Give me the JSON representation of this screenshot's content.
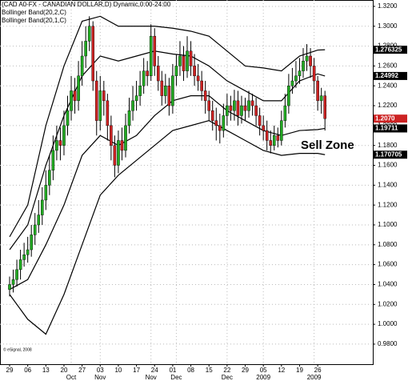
{
  "chart_data": {
    "type": "candlestick",
    "title": "(CAD A0-FX - CANADIAN DOLLAR,D) Dynamic,0:00-24:00",
    "annotation": "Sell Zone",
    "credit": "© eSignal, 2008",
    "up_color": "#22aa22",
    "down_color": "#cc2222",
    "grid": true,
    "xlim": [
      -2.65,
      100.2
    ],
    "ylim": [
      0.9598,
      1.3264
    ],
    "yticks": [
      {
        "value": 0.98,
        "label": "0.9800"
      },
      {
        "value": 1.0,
        "label": "1.0000"
      },
      {
        "value": 1.02,
        "label": "1.0200"
      },
      {
        "value": 1.04,
        "label": "1.0400"
      },
      {
        "value": 1.06,
        "label": "1.0600"
      },
      {
        "value": 1.08,
        "label": "1.0800"
      },
      {
        "value": 1.1,
        "label": "1.1000"
      },
      {
        "value": 1.12,
        "label": "1.1200"
      },
      {
        "value": 1.14,
        "label": "1.1400"
      },
      {
        "value": 1.16,
        "label": "1.1600"
      },
      {
        "value": 1.18,
        "label": "1.1800"
      },
      {
        "value": 1.2,
        "label": "1.2000"
      },
      {
        "value": 1.22,
        "label": "1.2200"
      },
      {
        "value": 1.24,
        "label": "1.2400"
      },
      {
        "value": 1.26,
        "label": "1.2600"
      },
      {
        "value": 1.28,
        "label": "1.2800"
      },
      {
        "value": 1.3,
        "label": "1.3000"
      },
      {
        "value": 1.32,
        "label": "1.3200"
      }
    ],
    "categories": [
      "29",
      null,
      null,
      null,
      null,
      "06",
      null,
      null,
      null,
      null,
      "13",
      null,
      null,
      null,
      null,
      "20",
      null,
      null,
      null,
      null,
      "27",
      null,
      null,
      null,
      null,
      "03",
      null,
      null,
      null,
      null,
      "10",
      null,
      null,
      null,
      null,
      "17",
      null,
      null,
      null,
      null,
      "24",
      null,
      null,
      null,
      null,
      "01",
      null,
      null,
      null,
      null,
      "08",
      null,
      null,
      null,
      null,
      "15",
      null,
      null,
      null,
      null,
      "22",
      null,
      null,
      null,
      null,
      "29",
      null,
      null,
      null,
      null,
      "05",
      null,
      null,
      null,
      null,
      "12",
      null,
      null,
      null,
      null,
      "19",
      null,
      null,
      null,
      null,
      "26",
      null,
      null
    ],
    "months": [
      null,
      null,
      null,
      null,
      null,
      null,
      null,
      null,
      null,
      null,
      null,
      null,
      null,
      null,
      null,
      null,
      null,
      "Oct",
      null,
      null,
      null,
      null,
      null,
      null,
      null,
      "Nov",
      null,
      null,
      null,
      null,
      null,
      null,
      null,
      null,
      null,
      null,
      null,
      null,
      null,
      "Nov",
      null,
      null,
      null,
      null,
      null,
      null,
      "Dec",
      null,
      null,
      null,
      null,
      null,
      null,
      null,
      null,
      null,
      null,
      null,
      null,
      null,
      "Dec",
      null,
      null,
      null,
      null,
      null,
      null,
      null,
      null,
      null,
      "2009",
      null,
      null,
      null,
      null,
      null,
      null,
      null,
      null,
      null,
      null,
      null,
      null,
      null,
      "2009",
      null,
      null,
      null
    ],
    "series": [
      {
        "name": "CAD A0-FX",
        "last_close_label": "1.2070",
        "open": [
          1.035,
          1.04,
          1.045,
          1.055,
          1.065,
          1.07,
          1.075,
          1.09,
          1.1,
          1.11,
          1.125,
          1.14,
          1.155,
          1.175,
          1.185,
          1.18,
          1.2,
          1.215,
          1.235,
          1.225,
          1.25,
          1.27,
          1.285,
          1.3,
          1.245,
          1.205,
          1.235,
          1.225,
          1.2,
          1.18,
          1.16,
          1.185,
          1.175,
          1.2,
          1.215,
          1.225,
          1.23,
          1.24,
          1.255,
          1.25,
          1.29,
          1.26,
          1.245,
          1.23,
          1.24,
          1.22,
          1.25,
          1.26,
          1.27,
          1.255,
          1.275,
          1.26,
          1.25,
          1.245,
          1.235,
          1.225,
          1.215,
          1.205,
          1.2,
          1.195,
          1.21,
          1.22,
          1.215,
          1.225,
          1.21,
          1.22,
          1.215,
          1.225,
          1.22,
          1.21,
          1.2,
          1.195,
          1.185,
          1.18,
          1.19,
          1.185,
          1.205,
          1.22,
          1.24,
          1.245,
          1.25,
          1.255,
          1.265,
          1.27,
          1.26,
          1.245,
          1.225,
          1.23
        ],
        "high": [
          1.048,
          1.055,
          1.065,
          1.075,
          1.082,
          1.088,
          1.1,
          1.112,
          1.125,
          1.138,
          1.155,
          1.17,
          1.19,
          1.2,
          1.198,
          1.215,
          1.23,
          1.25,
          1.248,
          1.265,
          1.285,
          1.3,
          1.31,
          1.305,
          1.255,
          1.25,
          1.245,
          1.232,
          1.21,
          1.19,
          1.195,
          1.198,
          1.212,
          1.228,
          1.24,
          1.245,
          1.255,
          1.268,
          1.265,
          1.302,
          1.298,
          1.27,
          1.255,
          1.252,
          1.248,
          1.262,
          1.272,
          1.285,
          1.28,
          1.29,
          1.285,
          1.272,
          1.262,
          1.255,
          1.245,
          1.235,
          1.225,
          1.218,
          1.212,
          1.222,
          1.232,
          1.23,
          1.236,
          1.235,
          1.23,
          1.228,
          1.235,
          1.232,
          1.228,
          1.218,
          1.21,
          1.205,
          1.195,
          1.2,
          1.198,
          1.215,
          1.232,
          1.252,
          1.258,
          1.265,
          1.268,
          1.278,
          1.282,
          1.278,
          1.268,
          1.25,
          1.238,
          1.235
        ],
        "low": [
          1.028,
          1.032,
          1.038,
          1.045,
          1.058,
          1.062,
          1.068,
          1.08,
          1.092,
          1.1,
          1.115,
          1.13,
          1.145,
          1.165,
          1.165,
          1.17,
          1.19,
          1.205,
          1.212,
          1.215,
          1.24,
          1.258,
          1.275,
          1.235,
          1.19,
          1.195,
          1.21,
          1.185,
          1.165,
          1.148,
          1.152,
          1.165,
          1.168,
          1.192,
          1.205,
          1.215,
          1.22,
          1.232,
          1.24,
          1.245,
          1.25,
          1.235,
          1.22,
          1.222,
          1.21,
          1.212,
          1.24,
          1.25,
          1.245,
          1.248,
          1.25,
          1.24,
          1.235,
          1.225,
          1.212,
          1.205,
          1.195,
          1.185,
          1.182,
          1.188,
          1.2,
          1.205,
          1.205,
          1.2,
          1.202,
          1.205,
          1.208,
          1.21,
          1.2,
          1.19,
          1.185,
          1.175,
          1.172,
          1.175,
          1.178,
          1.18,
          1.198,
          1.212,
          1.232,
          1.238,
          1.242,
          1.248,
          1.255,
          1.248,
          1.232,
          1.215,
          1.212,
          1.195
        ],
        "close": [
          1.04,
          1.045,
          1.055,
          1.065,
          1.07,
          1.075,
          1.09,
          1.1,
          1.11,
          1.125,
          1.14,
          1.155,
          1.175,
          1.185,
          1.18,
          1.2,
          1.215,
          1.235,
          1.225,
          1.25,
          1.27,
          1.285,
          1.3,
          1.245,
          1.205,
          1.235,
          1.225,
          1.2,
          1.18,
          1.16,
          1.185,
          1.175,
          1.2,
          1.215,
          1.225,
          1.23,
          1.24,
          1.255,
          1.25,
          1.29,
          1.26,
          1.245,
          1.23,
          1.24,
          1.22,
          1.25,
          1.26,
          1.27,
          1.255,
          1.275,
          1.26,
          1.25,
          1.245,
          1.235,
          1.225,
          1.215,
          1.205,
          1.2,
          1.195,
          1.21,
          1.22,
          1.215,
          1.225,
          1.21,
          1.22,
          1.215,
          1.225,
          1.22,
          1.21,
          1.2,
          1.195,
          1.185,
          1.18,
          1.19,
          1.185,
          1.205,
          1.22,
          1.24,
          1.245,
          1.25,
          1.255,
          1.265,
          1.27,
          1.26,
          1.245,
          1.225,
          1.23,
          1.207
        ]
      }
    ],
    "bands": [
      {
        "name": "Bollinger Band(20,2,C)",
        "color": "#000000",
        "x": [
          0,
          5,
          10,
          15,
          20,
          25,
          30,
          35,
          40,
          45,
          50,
          55,
          60,
          65,
          70,
          75,
          80,
          85,
          87
        ],
        "upper": [
          1.088,
          1.12,
          1.2,
          1.26,
          1.305,
          1.31,
          1.3,
          1.3,
          1.3,
          1.298,
          1.295,
          1.29,
          1.275,
          1.26,
          1.258,
          1.255,
          1.27,
          1.276,
          1.276325
        ],
        "lower": [
          1.03,
          1.005,
          0.99,
          1.03,
          1.08,
          1.13,
          1.15,
          1.165,
          1.18,
          1.195,
          1.2,
          1.205,
          1.195,
          1.185,
          1.175,
          1.17,
          1.172,
          1.172,
          1.170705
        ]
      },
      {
        "name": "Bollinger Band(20,1,C)",
        "color": "#000000",
        "x": [
          0,
          5,
          10,
          15,
          20,
          25,
          30,
          35,
          40,
          45,
          50,
          55,
          60,
          65,
          70,
          75,
          80,
          85,
          87
        ],
        "upper": [
          1.075,
          1.1,
          1.16,
          1.21,
          1.25,
          1.27,
          1.265,
          1.27,
          1.275,
          1.272,
          1.27,
          1.26,
          1.245,
          1.235,
          1.225,
          1.225,
          1.245,
          1.252,
          1.24992
        ],
        "lower": [
          1.035,
          1.045,
          1.08,
          1.12,
          1.17,
          1.19,
          1.18,
          1.19,
          1.21,
          1.225,
          1.23,
          1.23,
          1.215,
          1.205,
          1.195,
          1.19,
          1.195,
          1.196,
          1.19711
        ]
      }
    ]
  }
}
